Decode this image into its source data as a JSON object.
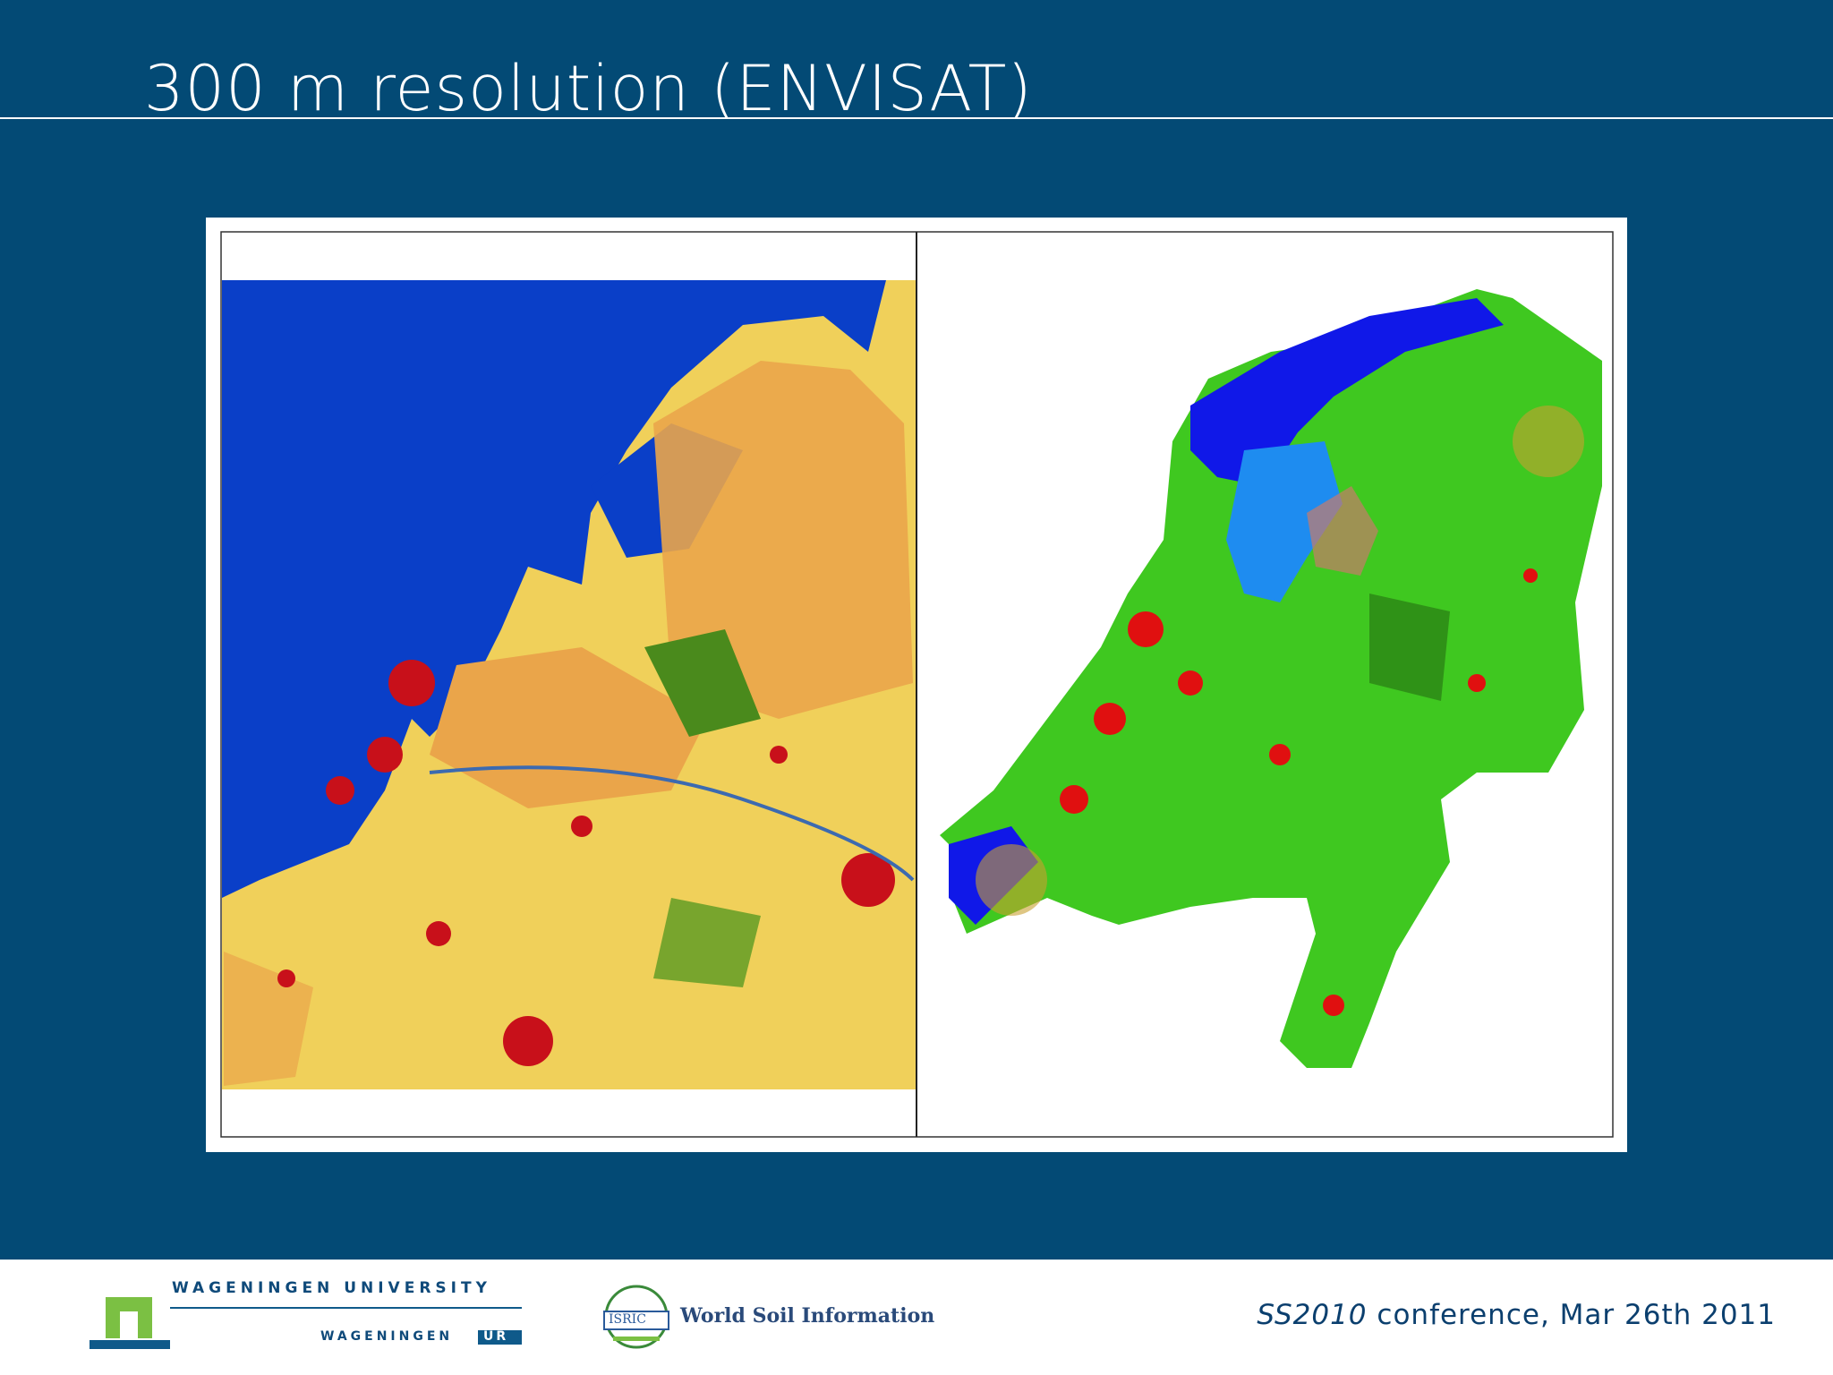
{
  "slide": {
    "title": "300 m resolution (ENVISAT)"
  },
  "footer": {
    "university": "WAGENINGEN UNIVERSITY",
    "ur_prefix": "WAGENINGEN",
    "ur": "UR",
    "isric": "ISRIC",
    "isric_name": "World Soil Information",
    "conference_name": "SS2010",
    "conference_rest": "conference, Mar 26th 2011"
  }
}
